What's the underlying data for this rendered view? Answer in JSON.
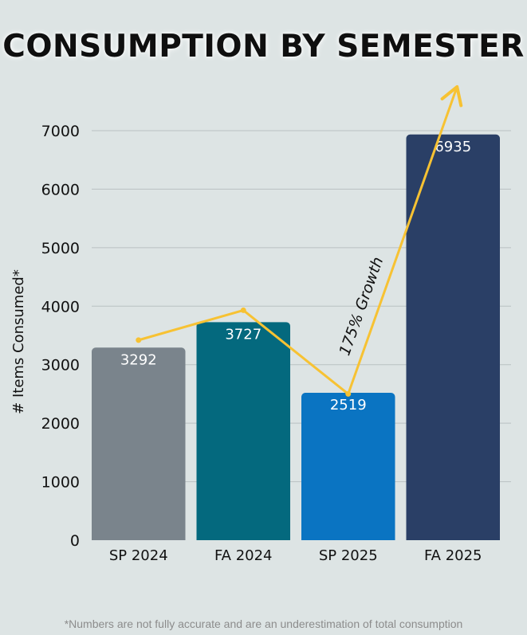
{
  "title": "CONSUMPTION BY SEMESTER",
  "footnote": "*Numbers are not fully accurate and are an underestimation of total consumption",
  "chart_data": {
    "type": "bar",
    "title": "CONSUMPTION BY SEMESTER",
    "ylabel": "# Items Consumed*",
    "xlabel": "",
    "categories": [
      "SP 2024",
      "FA 2024",
      "SP 2025",
      "FA 2025"
    ],
    "values": [
      3292,
      3727,
      2519,
      6935
    ],
    "bar_colors": [
      "#7a848c",
      "#04697e",
      "#0a74c2",
      "#2a3f66"
    ],
    "ylim": [
      0,
      7000
    ],
    "yticks": [
      0,
      1000,
      2000,
      3000,
      4000,
      5000,
      6000,
      7000
    ],
    "grid": true,
    "trend_line": {
      "color": "#f7c233",
      "values": [
        3420,
        3930,
        2500,
        7750
      ],
      "arrow_end": true
    },
    "annotation": "175% Growth"
  }
}
